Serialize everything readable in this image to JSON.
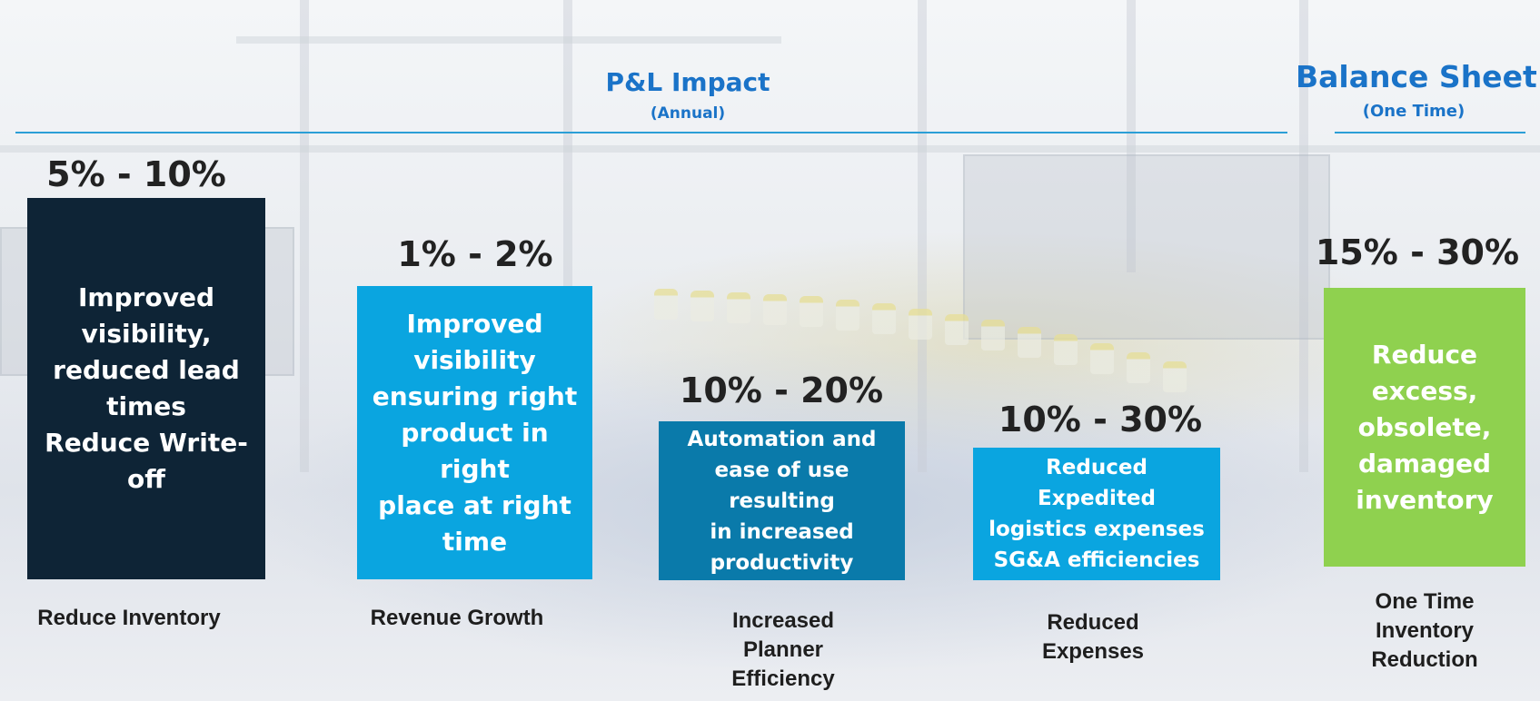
{
  "header": {
    "pl_title": "P&L Impact",
    "pl_subtitle": "(Annual)",
    "bs_title": "Balance Sheet",
    "bs_subtitle": "(One Time)"
  },
  "columns": [
    {
      "percent": "5% - 10%",
      "box_text": "Improved\nvisibility,\nreduced lead\ntimes\nReduce Write-off",
      "label": "Reduce Inventory",
      "color": "#0e2436"
    },
    {
      "percent": "1% - 2%",
      "box_text": "Improved\nvisibility\nensuring right\nproduct in right\nplace at right\ntime",
      "label": "Revenue Growth",
      "color": "#0aa5e0"
    },
    {
      "percent": "10% - 20%",
      "box_text": "Automation and\nease of use resulting\nin increased\nproductivity",
      "label": "Increased\nPlanner\nEfficiency",
      "color": "#0a7aaa"
    },
    {
      "percent": "10% - 30%",
      "box_text": "Reduced Expedited\nlogistics expenses\nSG&A efficiencies",
      "label": "Reduced\nExpenses",
      "color": "#0aa5e0"
    },
    {
      "percent": "15% - 30%",
      "box_text": "Reduce\nexcess,\nobsolete,\ndamaged\ninventory",
      "label": "One Time\nInventory\nReduction",
      "color": "#8fd14f"
    }
  ]
}
